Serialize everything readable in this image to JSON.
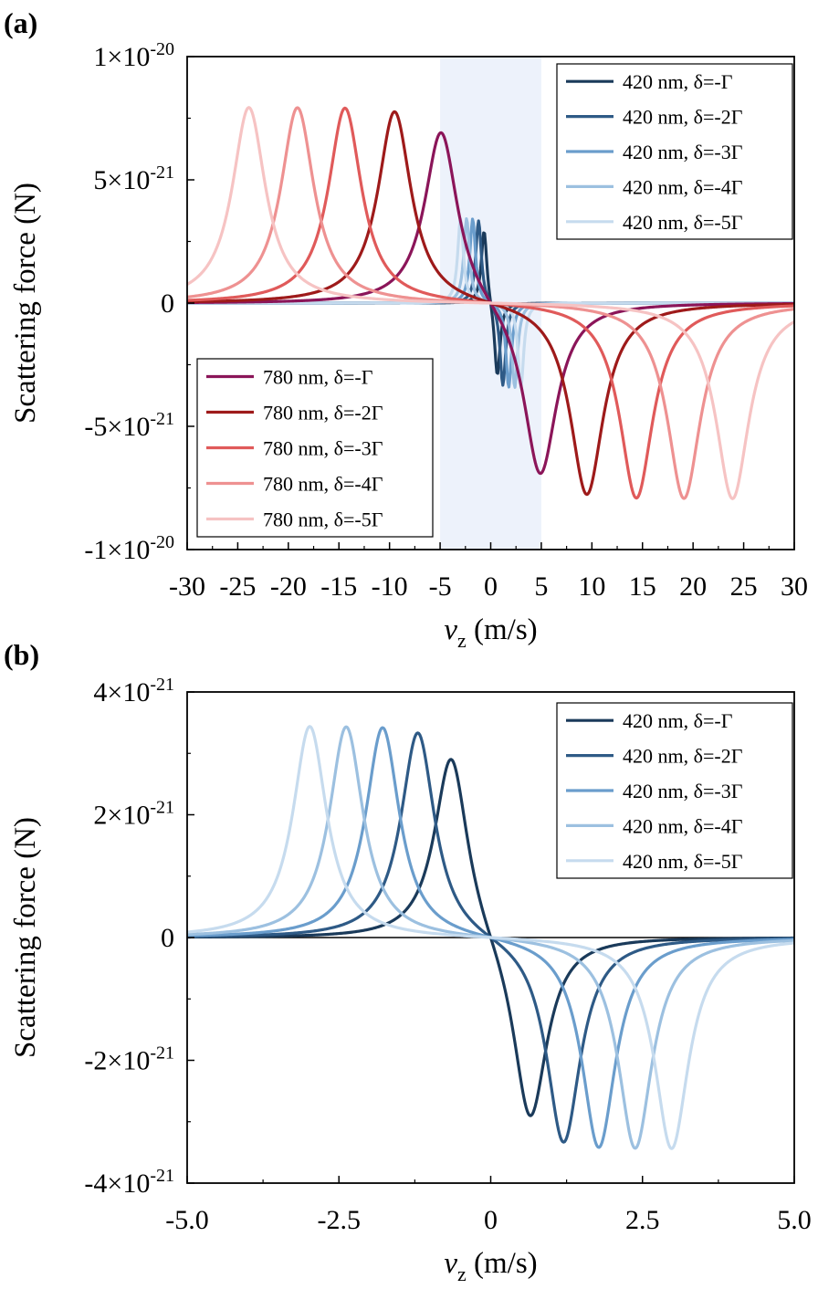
{
  "charts": [
    {
      "panel_label": "(a)",
      "ylabel": "Scattering force (N)",
      "xlabel": {
        "var": "v",
        "sub": "z",
        "unit": " (m/s)"
      },
      "ytick_labels": [
        {
          "value": 1e-20,
          "mant": "1×10",
          "exp": "-20"
        },
        {
          "value": 5e-21,
          "mant": "5×10",
          "exp": "-21"
        },
        {
          "value": 0,
          "mant": "0",
          "exp": ""
        },
        {
          "value": -5e-21,
          "mant": "-5×10",
          "exp": "-21"
        },
        {
          "value": -1e-20,
          "mant": "-1×10",
          "exp": "-20"
        }
      ],
      "shaded_region": {
        "x": [
          -5,
          5
        ],
        "color": "#edf2fb"
      }
    },
    {
      "panel_label": "(b)",
      "ylabel": "Scattering force (N)",
      "xlabel": {
        "var": "v",
        "sub": "z",
        "unit": " (m/s)"
      },
      "ytick_labels": [
        {
          "value": 4e-21,
          "mant": "4×10",
          "exp": "-21"
        },
        {
          "value": 2e-21,
          "mant": "2×10",
          "exp": "-21"
        },
        {
          "value": 0,
          "mant": "0",
          "exp": ""
        },
        {
          "value": -2e-21,
          "mant": "-2×10",
          "exp": "-21"
        },
        {
          "value": -4e-21,
          "mant": "-4×10",
          "exp": "-21"
        }
      ]
    }
  ],
  "chart_data": [
    {
      "type": "line",
      "panel": "(a)",
      "xlabel": "vz (m/s)",
      "ylabel": "Scattering force (N)",
      "xlim": [
        -30,
        30
      ],
      "ylim": [
        -1e-20,
        1e-20
      ],
      "xticks": [
        -30,
        -25,
        -20,
        -15,
        -10,
        -5,
        0,
        5,
        10,
        15,
        20,
        25,
        30
      ],
      "xtick_labels": [
        "-30",
        "-25",
        "-20",
        "-15",
        "-10",
        "-5",
        "0",
        "5",
        "10",
        "15",
        "20",
        "25",
        "30"
      ],
      "grid": false,
      "series": [
        {
          "name": "420 nm, δ=-Γ",
          "color": "#1a3a5a",
          "peak_v": 0.65,
          "peak_f": 3.1e-21,
          "width": 0.34,
          "legend": 0
        },
        {
          "name": "420 nm, δ=-2Γ",
          "color": "#2e5a86",
          "peak_v": 1.2,
          "peak_f": 3.4e-21,
          "width": 0.34,
          "legend": 0
        },
        {
          "name": "420 nm, δ=-3Γ",
          "color": "#6a9dcc",
          "peak_v": 1.78,
          "peak_f": 3.45e-21,
          "width": 0.34,
          "legend": 0
        },
        {
          "name": "420 nm, δ=-4Γ",
          "color": "#9cc0e0",
          "peak_v": 2.38,
          "peak_f": 3.45e-21,
          "width": 0.34,
          "legend": 0
        },
        {
          "name": "420 nm, δ=-5Γ",
          "color": "#c6dbee",
          "peak_v": 2.98,
          "peak_f": 3.45e-21,
          "width": 0.34,
          "legend": 0
        },
        {
          "name": "780 nm, δ=-Γ",
          "color": "#8b1559",
          "peak_v": 4.9,
          "peak_f": 7.2e-21,
          "width": 2.0,
          "legend": 1
        },
        {
          "name": "780 nm, δ=-2Γ",
          "color": "#9e1a1a",
          "peak_v": 9.5,
          "peak_f": 7.85e-21,
          "width": 2.0,
          "legend": 1
        },
        {
          "name": "780 nm, δ=-3Γ",
          "color": "#e05a5a",
          "peak_v": 14.4,
          "peak_f": 7.95e-21,
          "width": 2.0,
          "legend": 1
        },
        {
          "name": "780 nm,  δ=-4Γ",
          "color": "#ee9191",
          "peak_v": 19.1,
          "peak_f": 7.95e-21,
          "width": 2.0,
          "legend": 1
        },
        {
          "name": "780 nm,  δ=-5Γ",
          "color": "#f6c3c3",
          "peak_v": 23.9,
          "peak_f": 7.95e-21,
          "width": 2.0,
          "legend": 1
        }
      ],
      "legends": [
        "top-right",
        "bottom-left"
      ]
    },
    {
      "type": "line",
      "panel": "(b)",
      "xlabel": "vz (m/s)",
      "ylabel": "Scattering force (N)",
      "xlim": [
        -5,
        5
      ],
      "ylim": [
        -4e-21,
        4e-21
      ],
      "xticks": [
        -5,
        -2.5,
        0,
        2.5,
        5
      ],
      "xtick_labels": [
        "-5.0",
        "-2.5",
        "0",
        "2.5",
        "5.0"
      ],
      "grid": false,
      "series": [
        {
          "name": "420 nm, δ=-Γ",
          "color": "#1a3a5a",
          "peak_v": 0.65,
          "peak_f": 3.1e-21,
          "width": 0.34,
          "legend": 0
        },
        {
          "name": "420 nm, δ=-2Γ",
          "color": "#2e5a86",
          "peak_v": 1.2,
          "peak_f": 3.4e-21,
          "width": 0.34,
          "legend": 0
        },
        {
          "name": "420 nm, δ=-3Γ",
          "color": "#6a9dcc",
          "peak_v": 1.78,
          "peak_f": 3.45e-21,
          "width": 0.34,
          "legend": 0
        },
        {
          "name": "420 nm, δ=-4Γ",
          "color": "#9cc0e0",
          "peak_v": 2.38,
          "peak_f": 3.45e-21,
          "width": 0.34,
          "legend": 0
        },
        {
          "name": "420 nm, δ=-5Γ",
          "color": "#c6dbee",
          "peak_v": 2.98,
          "peak_f": 3.45e-21,
          "width": 0.34,
          "legend": 0
        }
      ],
      "legends": [
        "top-right"
      ]
    }
  ]
}
